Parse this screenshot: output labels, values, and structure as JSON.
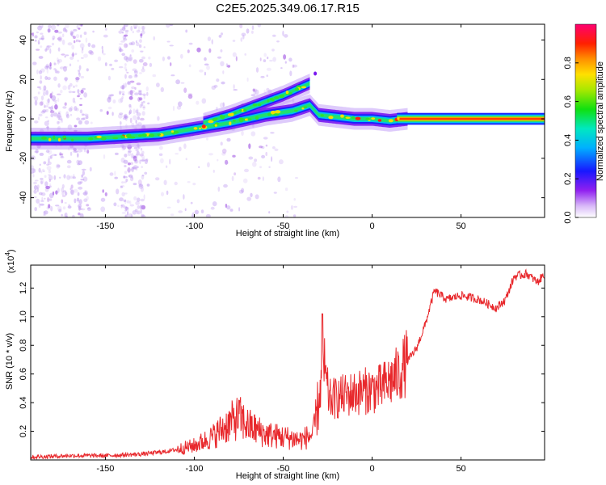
{
  "title": "C2E5.2025.349.06.17.R15",
  "chart_data": [
    {
      "type": "heatmap",
      "name": "spectrogram",
      "xlabel": "Height of straight line (km)",
      "ylabel": "Frequency (Hz)",
      "xlim": [
        -192,
        97
      ],
      "ylim": [
        -50,
        48
      ],
      "xticks": [
        -150,
        -100,
        -50,
        0,
        50
      ],
      "yticks": [
        -40,
        -20,
        0,
        20,
        40
      ],
      "ridge": [
        {
          "x": -192,
          "y": -10
        },
        {
          "x": -160,
          "y": -10
        },
        {
          "x": -140,
          "y": -9
        },
        {
          "x": -120,
          "y": -8
        },
        {
          "x": -100,
          "y": -5
        },
        {
          "x": -80,
          "y": -2
        },
        {
          "x": -60,
          "y": 2
        },
        {
          "x": -45,
          "y": 4
        },
        {
          "x": -35,
          "y": 7
        },
        {
          "x": -30,
          "y": 2
        },
        {
          "x": -20,
          "y": 1
        },
        {
          "x": -10,
          "y": 0
        },
        {
          "x": 0,
          "y": 0
        },
        {
          "x": 10,
          "y": -1
        },
        {
          "x": 20,
          "y": 0
        },
        {
          "x": 97,
          "y": 0
        }
      ],
      "upper_branch": [
        {
          "x": -95,
          "y": -2
        },
        {
          "x": -80,
          "y": 2
        },
        {
          "x": -65,
          "y": 7
        },
        {
          "x": -50,
          "y": 12
        },
        {
          "x": -40,
          "y": 16
        },
        {
          "x": -35,
          "y": 18
        }
      ],
      "colorbar": {
        "label": "Normalized spectral amplitude",
        "ticks": [
          "0.0",
          "0.2",
          "0.4",
          "0.6",
          "0.8"
        ],
        "range": [
          0,
          1
        ]
      }
    },
    {
      "type": "line",
      "name": "snr",
      "xlabel": "Height of straight line (km)",
      "ylabel": "SNR (10 * v/v)",
      "exponent_label": "(x10",
      "exponent_power": "4",
      "exponent_close": ")",
      "xlim": [
        -192,
        97
      ],
      "ylim": [
        0,
        1.36
      ],
      "xticks": [
        -150,
        -100,
        -50,
        0,
        50
      ],
      "yticks": [
        0.2,
        0.4,
        0.6,
        0.8,
        1.0,
        1.2
      ],
      "ytick_labels": [
        "0.2",
        "0.4",
        "0.6",
        "0.8",
        "1.0",
        "1.2"
      ],
      "color": "#e8282c",
      "series": [
        {
          "x": -192,
          "y": 0.02
        },
        {
          "x": -170,
          "y": 0.03
        },
        {
          "x": -150,
          "y": 0.03
        },
        {
          "x": -130,
          "y": 0.04
        },
        {
          "x": -115,
          "y": 0.06
        },
        {
          "x": -100,
          "y": 0.1
        },
        {
          "x": -90,
          "y": 0.16
        },
        {
          "x": -82,
          "y": 0.24
        },
        {
          "x": -75,
          "y": 0.3
        },
        {
          "x": -70,
          "y": 0.24
        },
        {
          "x": -60,
          "y": 0.18
        },
        {
          "x": -50,
          "y": 0.16
        },
        {
          "x": -40,
          "y": 0.14
        },
        {
          "x": -33,
          "y": 0.18
        },
        {
          "x": -29,
          "y": 0.5
        },
        {
          "x": -27,
          "y": 0.6
        },
        {
          "x": -24,
          "y": 0.42
        },
        {
          "x": -15,
          "y": 0.45
        },
        {
          "x": -5,
          "y": 0.48
        },
        {
          "x": 5,
          "y": 0.5
        },
        {
          "x": 15,
          "y": 0.6
        },
        {
          "x": 25,
          "y": 0.78
        },
        {
          "x": 30,
          "y": 0.95
        },
        {
          "x": 35,
          "y": 1.18
        },
        {
          "x": 42,
          "y": 1.12
        },
        {
          "x": 50,
          "y": 1.15
        },
        {
          "x": 60,
          "y": 1.12
        },
        {
          "x": 70,
          "y": 1.06
        },
        {
          "x": 75,
          "y": 1.12
        },
        {
          "x": 80,
          "y": 1.28
        },
        {
          "x": 87,
          "y": 1.3
        },
        {
          "x": 93,
          "y": 1.24
        },
        {
          "x": 97,
          "y": 1.3
        }
      ]
    }
  ]
}
